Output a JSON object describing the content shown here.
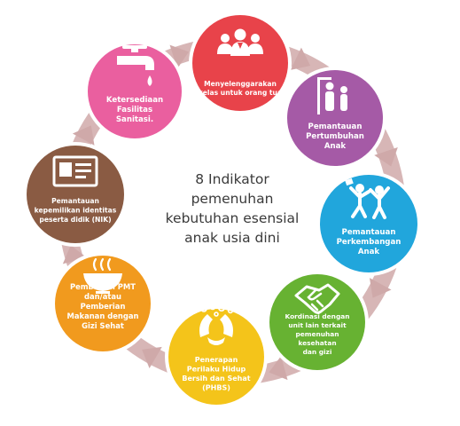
{
  "center": {
    "lines": [
      "8 Indikator",
      "pemenuhan",
      "kebutuhan esensial",
      "anak usia dini"
    ]
  },
  "nodes": [
    {
      "id": "menyelenggarakan-kelas",
      "color": "#e8434a",
      "icon": "people-group-icon",
      "lines": [
        "Menyelenggarakan",
        "kelas untuk orang tua"
      ]
    },
    {
      "id": "pemantauan-pertumbuhan",
      "color": "#a55aa6",
      "icon": "height-measure-icon",
      "lines": [
        "Pemantauan",
        "Pertumbuhan",
        "Anak"
      ]
    },
    {
      "id": "pemantauan-perkembangan",
      "color": "#21a6dc",
      "icon": "children-playing-icon",
      "lines": [
        "Pemantauan",
        "Perkembangan",
        "Anak"
      ]
    },
    {
      "id": "kordinasi",
      "color": "#67b232",
      "icon": "handshake-icon",
      "lines": [
        "Kordinasi dengan",
        "unit lain terkait",
        "pemenuhan",
        "kesehatan",
        "dan gizi"
      ]
    },
    {
      "id": "phbs",
      "color": "#f4c41a",
      "icon": "hand-washing-icon",
      "lines": [
        "Penerapan",
        "Perilaku Hidup",
        "Bersih dan Sehat",
        "(PHBS)"
      ]
    },
    {
      "id": "pmt",
      "color": "#f19a1e",
      "icon": "food-bowl-icon",
      "lines": [
        "Pemberian PMT",
        "dan/atau",
        "Pemberian",
        "Makanan dengan",
        "Gizi Sehat"
      ]
    },
    {
      "id": "nik",
      "color": "#8a5b43",
      "icon": "id-card-icon",
      "lines": [
        "Pemantauan",
        "kepemilikan identitas",
        "peserta didik (NIK)"
      ]
    },
    {
      "id": "sanitasi",
      "color": "#ea5f9f",
      "icon": "water-tap-icon",
      "lines": [
        "Ketersediaan",
        "Fasilitas",
        "Sanitasi."
      ]
    }
  ]
}
